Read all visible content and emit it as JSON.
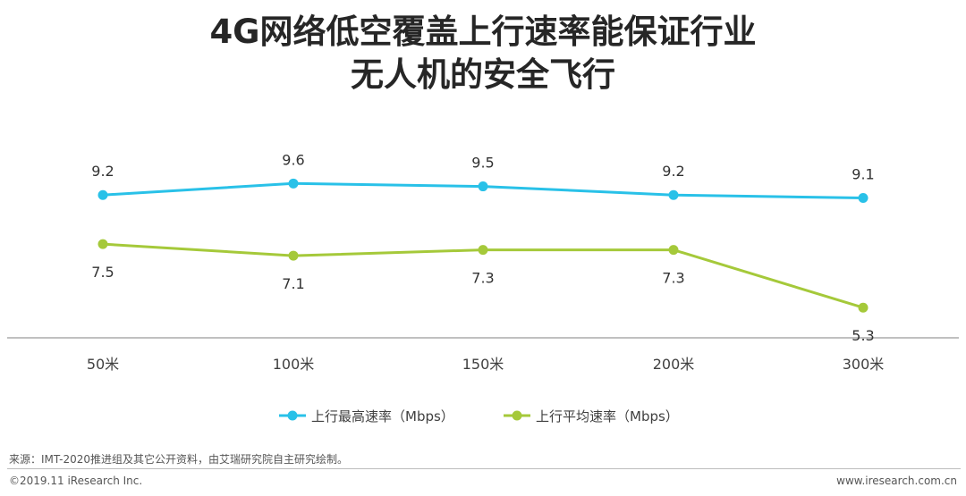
{
  "title_line1": "4G网络低空覆盖上行速率能保证行业",
  "title_line2": "无人机的安全飞行",
  "chart_data": {
    "type": "line",
    "categories": [
      "50米",
      "100米",
      "150米",
      "200米",
      "300米"
    ],
    "series": [
      {
        "name": "上行最高速率（Mbps）",
        "values": [
          9.2,
          9.6,
          9.5,
          9.2,
          9.1
        ],
        "color": "#29c1e8"
      },
      {
        "name": "上行平均速率（Mbps）",
        "values": [
          7.5,
          7.1,
          7.3,
          7.3,
          5.3
        ],
        "color": "#a5c93a"
      }
    ],
    "ylim": [
      0,
      11
    ],
    "grid": false,
    "legend_position": "bottom-center"
  },
  "footer": {
    "source": "来源：IMT-2020推进组及其它公开资料，由艾瑞研究院自主研究绘制。",
    "copyright": "©2019.11 iResearch Inc.",
    "website": "www.iresearch.com.cn"
  }
}
